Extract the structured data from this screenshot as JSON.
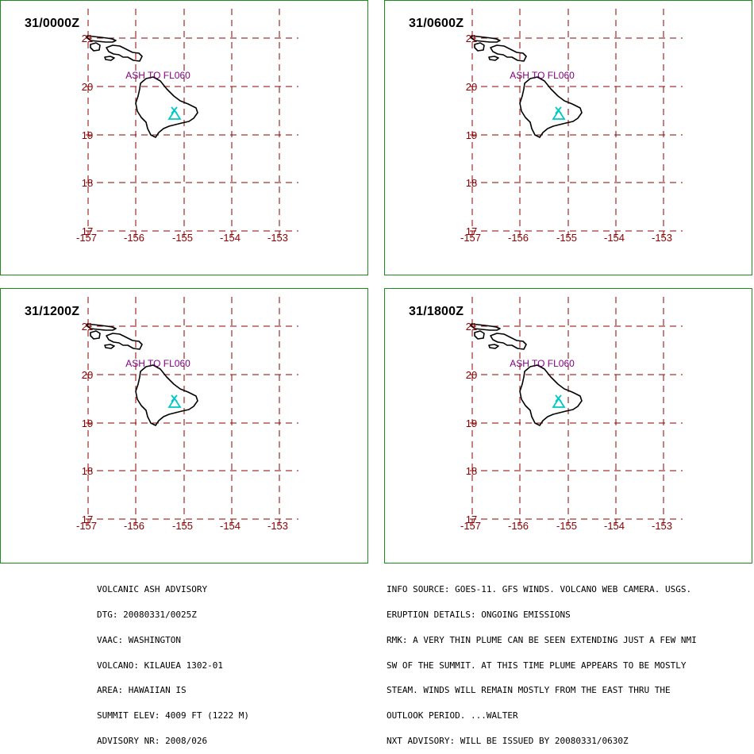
{
  "panels": [
    {
      "time": "31/0000Z",
      "ash_label": "ASH TO FL060"
    },
    {
      "time": "31/0600Z",
      "ash_label": "ASH TO FL060"
    },
    {
      "time": "31/1200Z",
      "ash_label": "ASH TO FL060"
    },
    {
      "time": "31/1800Z",
      "ash_label": "ASH TO FL060"
    }
  ],
  "map": {
    "lat_labels": [
      "21",
      "20",
      "19",
      "18",
      "17"
    ],
    "lon_labels": [
      "-157",
      "-156",
      "-155",
      "-154",
      "-153"
    ],
    "grid_color": "#8b0000",
    "coast_color": "#000000",
    "volcano_color": "#00c8c8",
    "ash_label_color": "#800080"
  },
  "advisory_left": [
    "VOLCANIC ASH ADVISORY",
    "DTG: 20080331/0025Z",
    "VAAC: WASHINGTON",
    "VOLCANO: KILAUEA 1302-01",
    "AREA: HAWAIIAN IS",
    "SUMMIT ELEV: 4009 FT (1222 M)",
    "ADVISORY NR: 2008/026"
  ],
  "advisory_right": [
    "INFO SOURCE: GOES-11. GFS WINDS. VOLCANO WEB CAMERA. USGS.",
    "ERUPTION DETAILS: ONGOING EMISSIONS",
    "RMK: A VERY THIN PLUME CAN BE SEEN EXTENDING JUST A FEW NMI",
    "SW OF THE SUMMIT. AT THIS TIME PLUME APPEARS TO BE MOSTLY",
    "STEAM. WINDS WILL REMAIN MOSTLY FROM THE EAST THRU THE",
    "OUTLOOK PERIOD. ...WALTER",
    "NXT ADVISORY: WILL BE ISSUED BY 20080331/0630Z"
  ]
}
